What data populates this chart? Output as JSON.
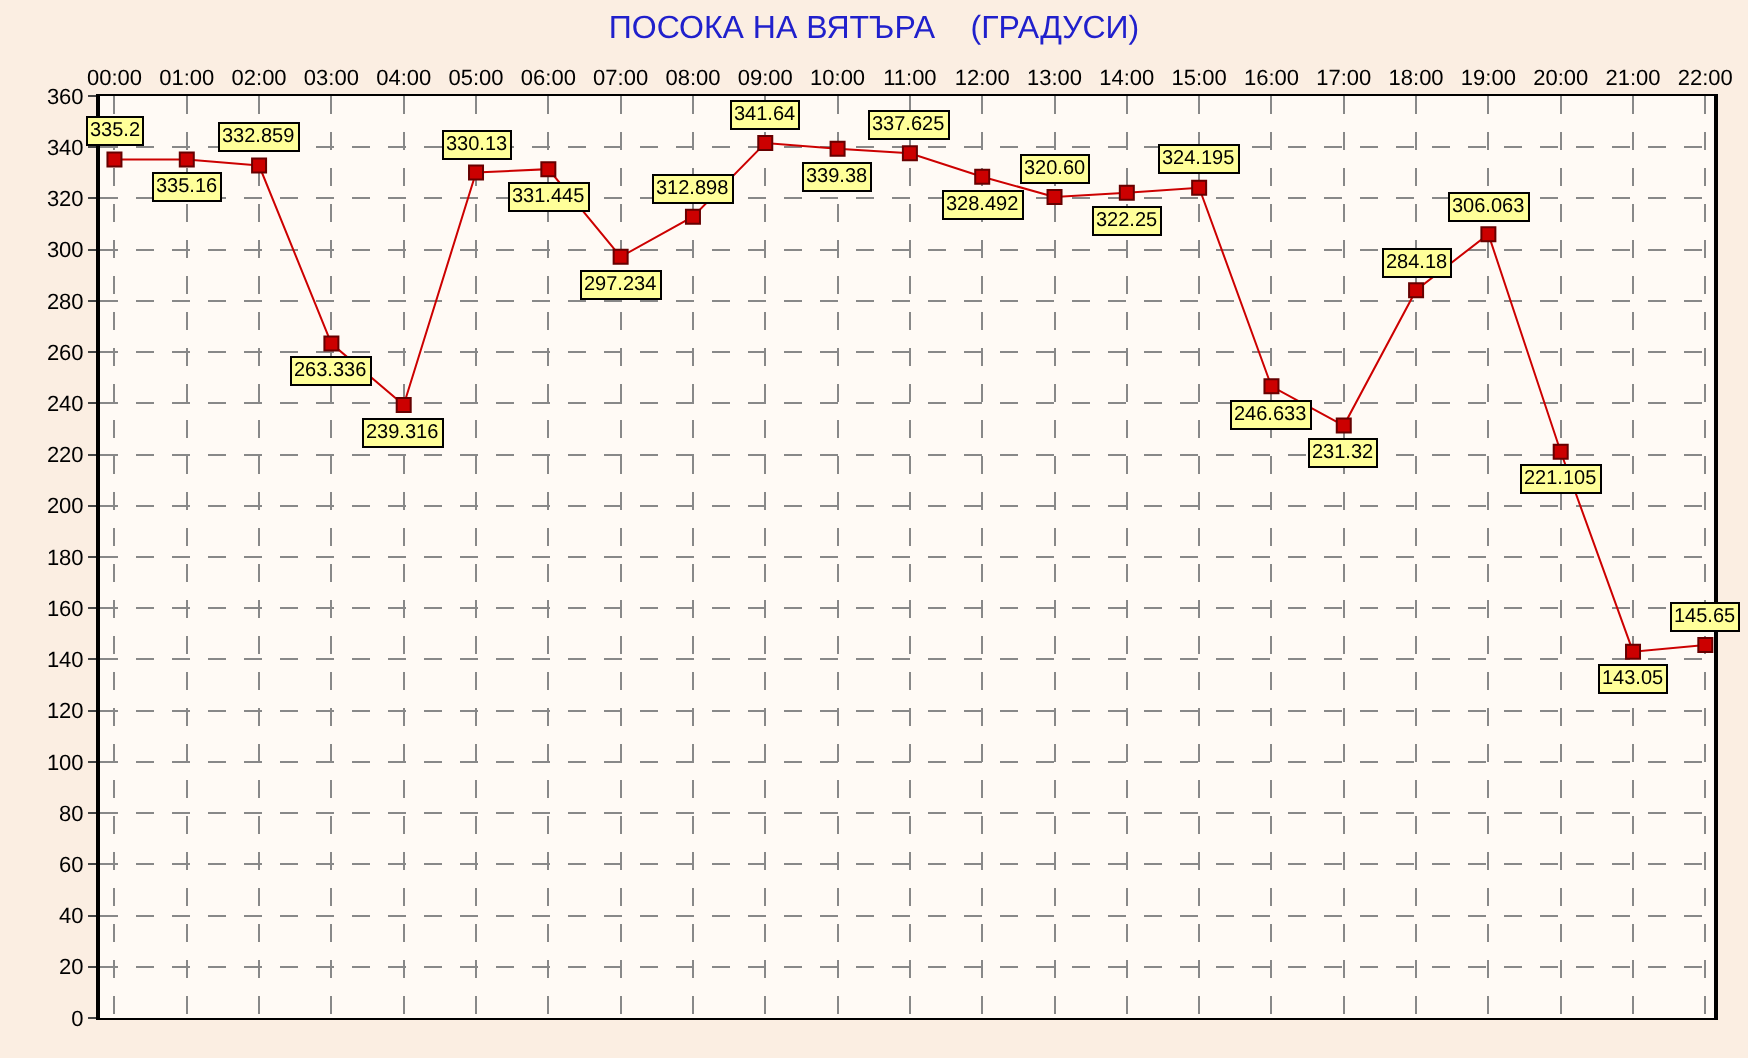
{
  "chart_data": {
    "type": "line",
    "title": "ПОСОКА НА ВЯТЪРА    (ГРАДУСИ)",
    "categories": [
      "00:00",
      "01:00",
      "02:00",
      "03:00",
      "04:00",
      "05:00",
      "06:00",
      "07:00",
      "08:00",
      "09:00",
      "10:00",
      "11:00",
      "12:00",
      "13:00",
      "14:00",
      "15:00",
      "16:00",
      "17:00",
      "18:00",
      "19:00",
      "20:00",
      "21:00",
      "22:00"
    ],
    "series": [
      {
        "color": "#cc0000",
        "values": [
          335.2,
          335.16,
          332.859,
          263.336,
          239.316,
          330.13,
          331.445,
          297.234,
          312.898,
          341.64,
          339.38,
          337.625,
          328.492,
          320.6,
          322.25,
          324.195,
          246.633,
          231.32,
          284.18,
          306.063,
          221.105,
          143.05,
          145.65
        ],
        "value_labels": [
          "335.2",
          "335.16",
          "332.859",
          "263.336",
          "239.316",
          "330.13",
          "331.445",
          "297.234",
          "312.898",
          "341.64",
          "339.38",
          "337.625",
          "328.492",
          "320.60",
          "322.25",
          "324.195",
          "246.633",
          "231.32",
          "284.18",
          "306.063",
          "221.105",
          "143.05",
          "145.65"
        ]
      }
    ],
    "ylim": [
      0,
      360
    ],
    "yticks": [
      0,
      20,
      40,
      60,
      80,
      100,
      120,
      140,
      160,
      180,
      200,
      220,
      240,
      260,
      280,
      300,
      320,
      340,
      360
    ],
    "grid": true,
    "marker": "square",
    "line_style": "solid"
  }
}
